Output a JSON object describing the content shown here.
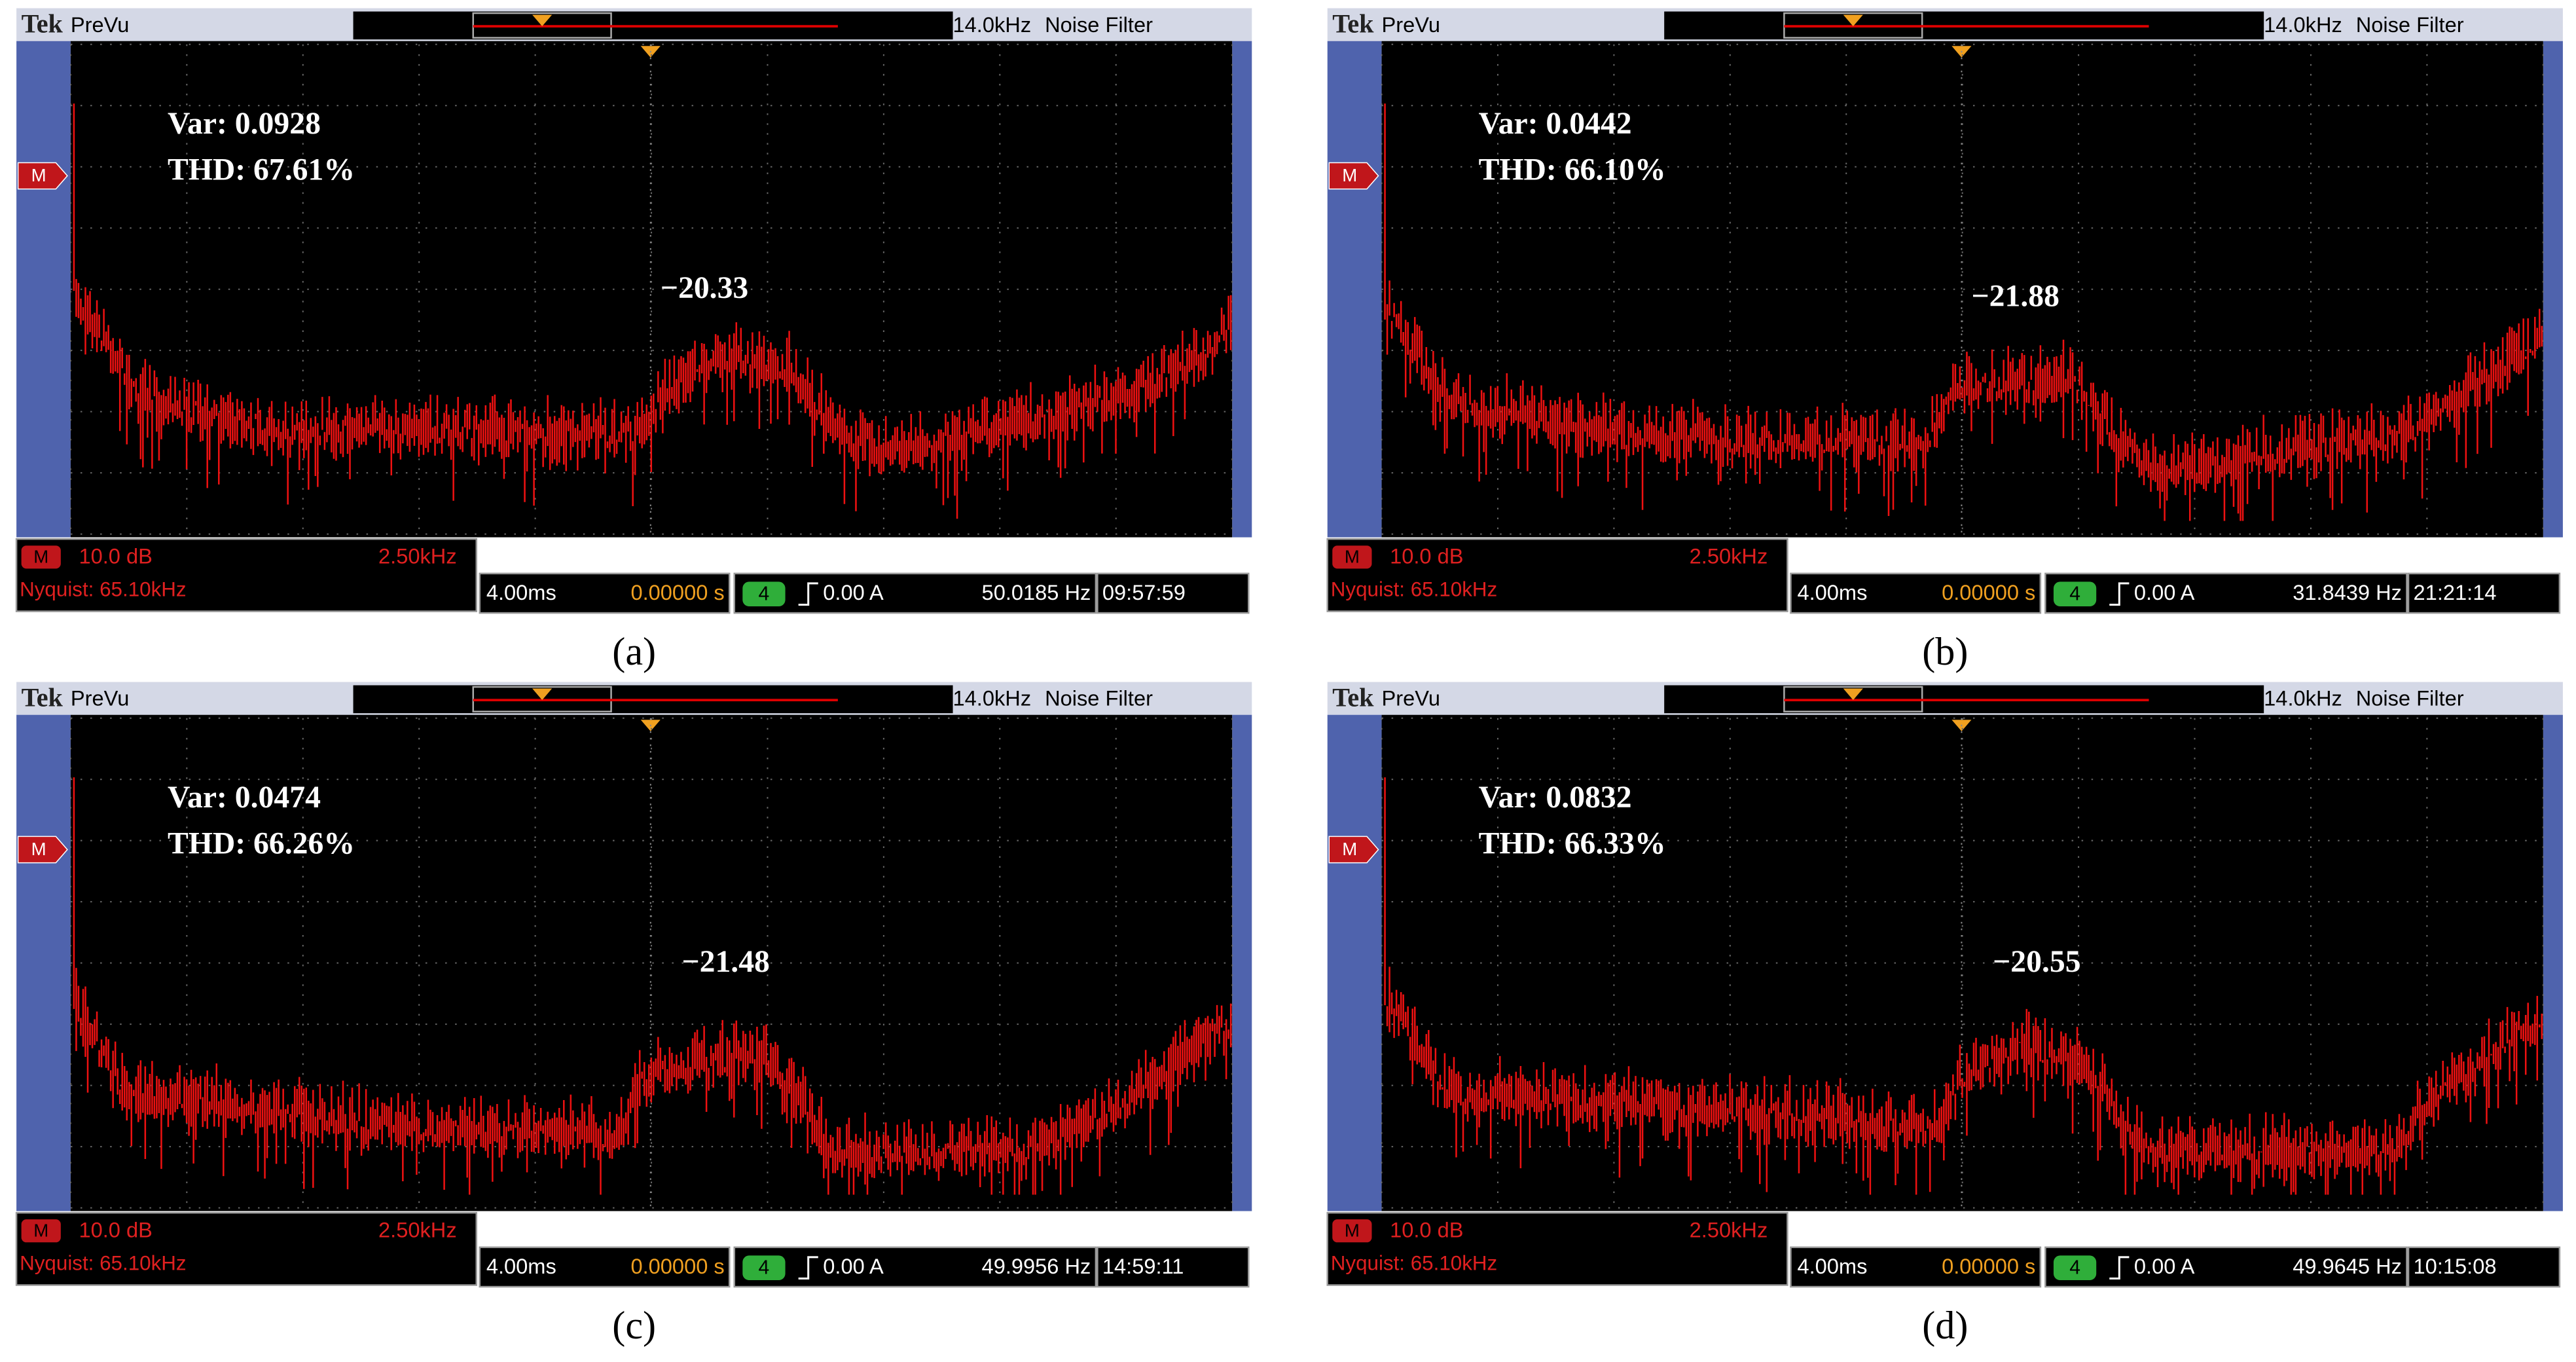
{
  "panels": [
    {
      "header": {
        "brand": "Tek",
        "mode": "PreVu",
        "filter_freq": "14.0kHz",
        "filter": "Noise Filter"
      },
      "side_marker": "M",
      "readout": {
        "var": "Var: 0.0928",
        "thd": "THD: 67.61%"
      },
      "peak_label": "−20.33",
      "math": {
        "badge": "M",
        "scale": "10.0 dB",
        "span": "2.50kHz",
        "nyquist": "Nyquist: 65.10kHz"
      },
      "status": {
        "timebase": "4.00ms",
        "delay": "0.00000 s",
        "channel": "4",
        "trigger": "0.00 A",
        "frequency": "50.0185 Hz",
        "clock": "09:57:59"
      },
      "caption": "(a)"
    },
    {
      "header": {
        "brand": "Tek",
        "mode": "PreVu",
        "filter_freq": "14.0kHz",
        "filter": "Noise Filter"
      },
      "side_marker": "M",
      "readout": {
        "var": "Var: 0.0442",
        "thd": "THD: 66.10%"
      },
      "peak_label": "−21.88",
      "math": {
        "badge": "M",
        "scale": "10.0 dB",
        "span": "2.50kHz",
        "nyquist": "Nyquist: 65.10kHz"
      },
      "status": {
        "timebase": "4.00ms",
        "delay": "0.00000 s",
        "channel": "4",
        "trigger": "0.00 A",
        "frequency": "31.8439 Hz",
        "clock": "21:21:14"
      },
      "caption": "(b)"
    },
    {
      "header": {
        "brand": "Tek",
        "mode": "PreVu",
        "filter_freq": "14.0kHz",
        "filter": "Noise Filter"
      },
      "side_marker": "M",
      "readout": {
        "var": "Var: 0.0474",
        "thd": "THD: 66.26%"
      },
      "peak_label": "−21.48",
      "math": {
        "badge": "M",
        "scale": "10.0 dB",
        "span": "2.50kHz",
        "nyquist": "Nyquist: 65.10kHz"
      },
      "status": {
        "timebase": "4.00ms",
        "delay": "0.00000 s",
        "channel": "4",
        "trigger": "0.00 A",
        "frequency": "49.9956 Hz",
        "clock": "14:59:11"
      },
      "caption": "(c)"
    },
    {
      "header": {
        "brand": "Tek",
        "mode": "PreVu",
        "filter_freq": "14.0kHz",
        "filter": "Noise Filter"
      },
      "side_marker": "M",
      "readout": {
        "var": "Var: 0.0832",
        "thd": "THD: 66.33%"
      },
      "peak_label": "−20.55",
      "math": {
        "badge": "M",
        "scale": "10.0 dB",
        "span": "2.50kHz",
        "nyquist": "Nyquist: 65.10kHz"
      },
      "status": {
        "timebase": "4.00ms",
        "delay": "0.00000 s",
        "channel": "4",
        "trigger": "0.00 A",
        "frequency": "49.9645 Hz",
        "clock": "10:15:08"
      },
      "caption": "(d)"
    }
  ]
}
